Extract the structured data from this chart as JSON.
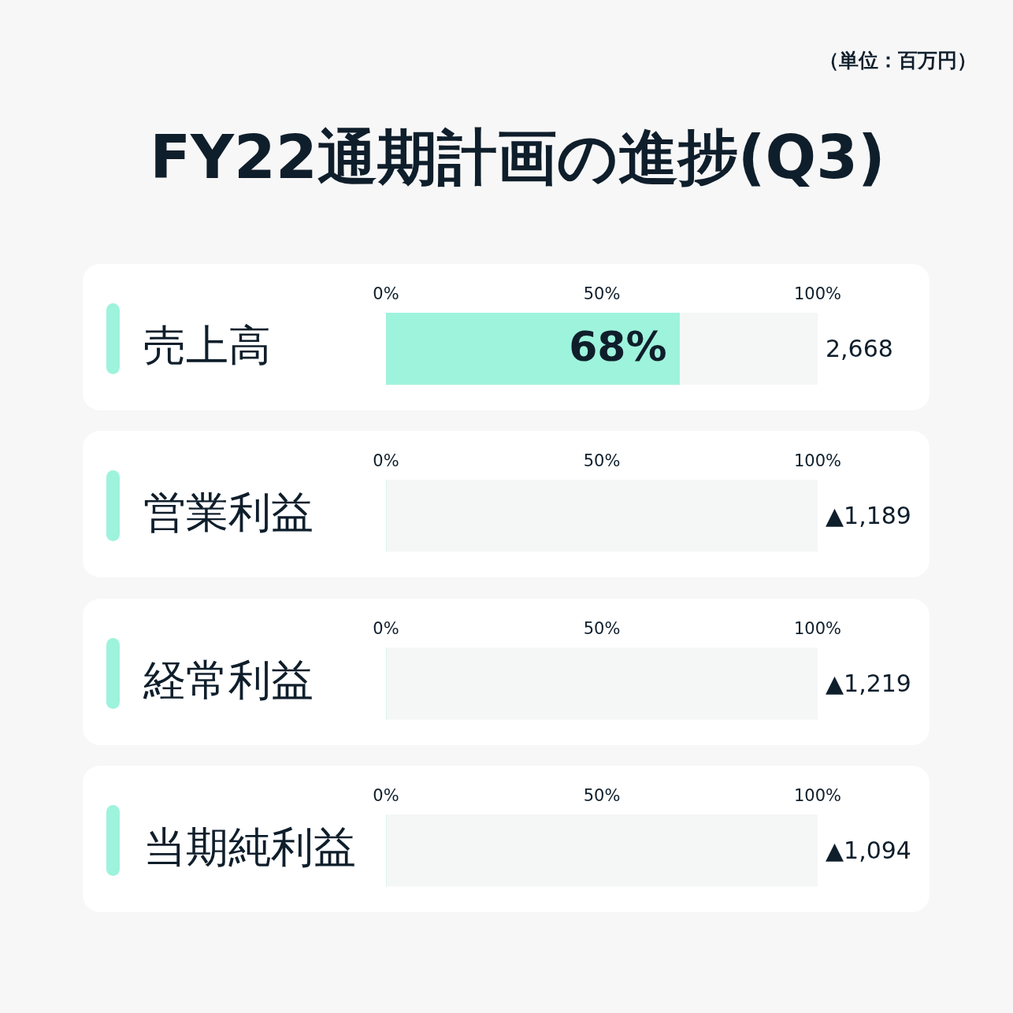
{
  "chart_data": [
    {
      "type": "bar",
      "orientation": "horizontal",
      "title": "FY22通期計画の進捗(Q3)",
      "annotations": [
        "（単位：百万円）",
        "2,668"
      ],
      "categories": [
        "売上高"
      ],
      "values": [
        68
      ],
      "value_labels": [
        "68%"
      ],
      "color": "#9ef3dc",
      "xlim": [
        0,
        100
      ],
      "xticks": [
        {
          "value": 0,
          "label": "0%"
        },
        {
          "value": 50,
          "label": "50%"
        },
        {
          "value": 100,
          "label": "100%"
        }
      ]
    },
    {
      "type": "bar",
      "orientation": "horizontal",
      "annotations": [
        "▲1,189"
      ],
      "categories": [
        "営業利益"
      ],
      "values": [
        0
      ],
      "color": "#9ef3dc",
      "xlim": [
        0,
        100
      ],
      "xticks": [
        {
          "value": 0,
          "label": "0%"
        },
        {
          "value": 50,
          "label": "50%"
        },
        {
          "value": 100,
          "label": "100%"
        }
      ]
    },
    {
      "type": "bar",
      "orientation": "horizontal",
      "annotations": [
        "▲1,219"
      ],
      "categories": [
        "経常利益"
      ],
      "values": [
        0
      ],
      "color": "#9ef3dc",
      "xlim": [
        0,
        100
      ],
      "xticks": [
        {
          "value": 0,
          "label": "0%"
        },
        {
          "value": 50,
          "label": "50%"
        },
        {
          "value": 100,
          "label": "100%"
        }
      ]
    },
    {
      "type": "bar",
      "orientation": "horizontal",
      "annotations": [
        "▲1,094"
      ],
      "categories": [
        "当期純利益"
      ],
      "values": [
        0
      ],
      "color": "#9ef3dc",
      "xlim": [
        0,
        100
      ],
      "xticks": [
        {
          "value": 0,
          "label": "0%"
        },
        {
          "value": 50,
          "label": "50%"
        },
        {
          "value": 100,
          "label": "100%"
        }
      ]
    }
  ]
}
